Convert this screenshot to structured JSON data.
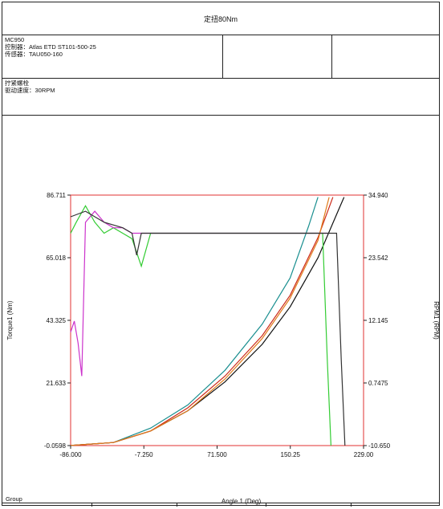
{
  "header": {
    "title": "定扭80Nm"
  },
  "info": {
    "device": "MC950",
    "controller": "控制器：Atlas ETD ST101-500-25",
    "sensor": "传感器：TAU050-160",
    "operation": "拧紧螺栓",
    "drive_speed": "驱动速度：30RPM"
  },
  "footer": {
    "group_label": "Group"
  },
  "chart_data": {
    "type": "line",
    "xlabel": "Angle 1 (Deg)",
    "ylabel_left": "Torque1 (Nm)",
    "ylabel_right": "RPM1 (RPM)",
    "xlim": [
      -86.0,
      229.0
    ],
    "ylim_left": [
      -0.0598,
      86.711
    ],
    "ylim_right": [
      -10.65,
      34.94
    ],
    "x_ticks": [
      "-86.000",
      "-7.250",
      "71.500",
      "150.25",
      "229.00"
    ],
    "y_ticks_left": [
      "86.711",
      "65.018",
      "43.325",
      "21.633",
      "-0.0598"
    ],
    "y_ticks_right": [
      "34.940",
      "23.542",
      "12.145",
      "0.7475",
      "-10.650"
    ],
    "grid": false,
    "legend": "none",
    "colors": {
      "frame": "#e03030",
      "torque_black": "#111111",
      "torque_teal": "#1a8f90",
      "torque_red": "#cc2a1a",
      "torque_orange": "#e07b1a",
      "rpm_green": "#33cc33",
      "rpm_magenta": "#cc33cc",
      "rpm_dark": "#333333"
    },
    "torque_series": [
      {
        "color_key": "torque_black",
        "x": [
          -86,
          -40,
          0,
          40,
          80,
          120,
          150,
          180,
          200,
          208
        ],
        "y": [
          0,
          1,
          5,
          12,
          22,
          35,
          48,
          65,
          80,
          86
        ]
      },
      {
        "color_key": "torque_teal",
        "x": [
          -86,
          -40,
          0,
          40,
          80,
          120,
          150,
          170,
          180
        ],
        "y": [
          0,
          1,
          6,
          14,
          26,
          42,
          58,
          76,
          86
        ]
      },
      {
        "color_key": "torque_red",
        "x": [
          -86,
          -40,
          0,
          40,
          80,
          120,
          150,
          180,
          196
        ],
        "y": [
          0,
          1,
          5,
          13,
          24,
          38,
          52,
          72,
          86
        ]
      },
      {
        "color_key": "torque_orange",
        "x": [
          -86,
          -40,
          0,
          40,
          80,
          120,
          150,
          180,
          192
        ],
        "y": [
          0,
          1,
          5,
          12,
          23,
          37,
          51,
          71,
          86
        ]
      }
    ],
    "rpm_series": [
      {
        "color_key": "rpm_green",
        "x": [
          -86,
          -80,
          -70,
          -60,
          -50,
          -40,
          -30,
          -20,
          -10,
          0,
          40,
          80,
          120,
          160,
          185,
          190,
          194
        ],
        "y": [
          28,
          30,
          33,
          30,
          28,
          29,
          28,
          27,
          22,
          28,
          28,
          28,
          28,
          28,
          28,
          5,
          -10.65
        ]
      },
      {
        "color_key": "rpm_magenta",
        "x": [
          -86,
          -82,
          -78,
          -74,
          -70,
          -60,
          -50,
          -40,
          -30,
          -20,
          -10,
          0,
          40,
          80,
          120,
          160,
          190
        ],
        "y": [
          10,
          12,
          8,
          2,
          30,
          32,
          30,
          29,
          29,
          28,
          28,
          28,
          28,
          28,
          28,
          28,
          28
        ]
      },
      {
        "color_key": "rpm_dark",
        "x": [
          -86,
          -70,
          -50,
          -30,
          -20,
          -15,
          -10,
          0,
          40,
          80,
          120,
          160,
          200,
          205,
          209
        ],
        "y": [
          31,
          32,
          30,
          29,
          28,
          24,
          28,
          28,
          28,
          28,
          28,
          28,
          28,
          5,
          -10.65
        ]
      }
    ]
  }
}
